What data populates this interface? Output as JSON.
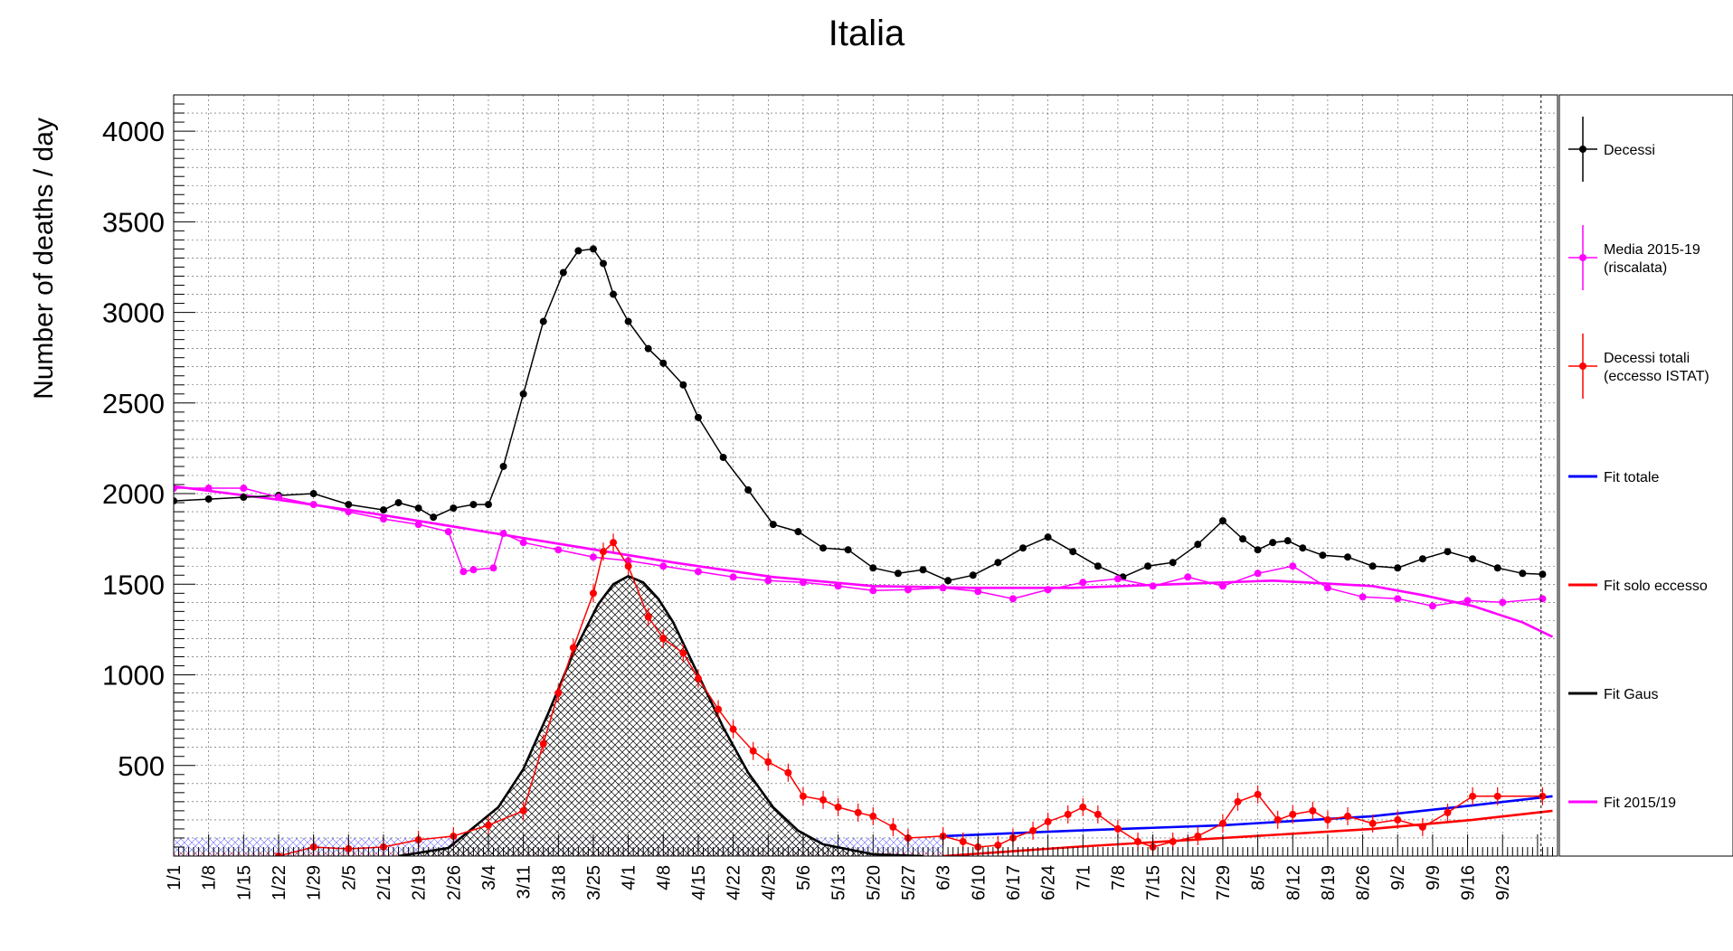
{
  "chart_data": {
    "type": "line",
    "title": "Italia",
    "xlabel": "",
    "ylabel": "Number of deaths / day",
    "xlim": [
      0,
      277
    ],
    "ylim": [
      0,
      4200
    ],
    "yticks": [
      500,
      1000,
      1500,
      2000,
      2500,
      3000,
      3500,
      4000
    ],
    "grid": true,
    "legend_position": "right",
    "x_tick_labels": [
      "1/1",
      "1/8",
      "1/15",
      "1/22",
      "1/29",
      "2/5",
      "2/12",
      "2/19",
      "2/26",
      "3/4",
      "3/11",
      "3/18",
      "3/25",
      "4/1",
      "4/8",
      "4/15",
      "4/22",
      "4/29",
      "5/6",
      "5/13",
      "5/20",
      "5/27",
      "6/3",
      "6/10",
      "6/17",
      "6/24",
      "7/1",
      "7/8",
      "7/15",
      "7/22",
      "7/29",
      "8/5",
      "8/12",
      "8/19",
      "8/26",
      "9/2",
      "9/9",
      "9/16",
      "9/23"
    ],
    "x_tick_days": [
      0,
      7,
      14,
      21,
      28,
      35,
      42,
      49,
      56,
      63,
      70,
      77,
      84,
      91,
      98,
      105,
      112,
      119,
      126,
      133,
      140,
      147,
      154,
      161,
      168,
      175,
      182,
      189,
      196,
      203,
      210,
      217,
      224,
      231,
      238,
      245,
      252,
      259,
      266
    ],
    "series": [
      {
        "name": "Decessi",
        "color": "#000000",
        "x": [
          0,
          7,
          14,
          21,
          28,
          35,
          42,
          45,
          49,
          52,
          56,
          60,
          63,
          66,
          70,
          74,
          78,
          81,
          84,
          86,
          88,
          91,
          95,
          98,
          102,
          105,
          110,
          115,
          120,
          125,
          130,
          135,
          140,
          145,
          150,
          155,
          160,
          165,
          170,
          175,
          180,
          185,
          190,
          195,
          200,
          205,
          210,
          214,
          217,
          220,
          223,
          226,
          230,
          235,
          240,
          245,
          250,
          255,
          260,
          265,
          270,
          274
        ],
        "values": [
          1960,
          1970,
          1980,
          1990,
          2000,
          1940,
          1910,
          1950,
          1920,
          1870,
          1920,
          1940,
          1940,
          2150,
          2550,
          2950,
          3220,
          3340,
          3350,
          3270,
          3100,
          2950,
          2800,
          2720,
          2600,
          2420,
          2200,
          2020,
          1830,
          1790,
          1700,
          1690,
          1590,
          1560,
          1580,
          1520,
          1550,
          1620,
          1700,
          1760,
          1680,
          1600,
          1540,
          1600,
          1620,
          1720,
          1850,
          1750,
          1690,
          1730,
          1740,
          1700,
          1660,
          1650,
          1600,
          1590,
          1640,
          1680,
          1640,
          1590,
          1560,
          1555
        ]
      },
      {
        "name": "Media 2015-19\n(riscalata)",
        "color": "#ff00ff",
        "x": [
          0,
          7,
          14,
          21,
          28,
          35,
          42,
          49,
          55,
          58,
          60,
          64,
          66,
          70,
          77,
          84,
          91,
          98,
          105,
          112,
          119,
          126,
          133,
          140,
          147,
          154,
          161,
          168,
          175,
          182,
          189,
          196,
          203,
          210,
          217,
          224,
          231,
          238,
          245,
          252,
          259,
          266,
          274
        ],
        "values": [
          2030,
          2030,
          2030,
          1980,
          1940,
          1900,
          1860,
          1830,
          1790,
          1570,
          1580,
          1590,
          1780,
          1730,
          1690,
          1650,
          1630,
          1600,
          1570,
          1540,
          1520,
          1510,
          1490,
          1465,
          1470,
          1480,
          1460,
          1420,
          1470,
          1510,
          1530,
          1490,
          1540,
          1490,
          1560,
          1600,
          1480,
          1430,
          1420,
          1380,
          1410,
          1400,
          1420
        ]
      },
      {
        "name": "Decessi totali\n(eccesso ISTAT)",
        "color": "#ff0000",
        "x": [
          21,
          28,
          35,
          42,
          49,
          56,
          63,
          70,
          74,
          77,
          80,
          84,
          86,
          88,
          91,
          95,
          98,
          102,
          105,
          109,
          112,
          116,
          119,
          123,
          126,
          130,
          133,
          137,
          140,
          144,
          147,
          154,
          158,
          161,
          165,
          168,
          172,
          175,
          179,
          182,
          185,
          189,
          193,
          196,
          200,
          205,
          210,
          213,
          217,
          221,
          224,
          228,
          231,
          235,
          240,
          245,
          250,
          255,
          260,
          265,
          274
        ],
        "values": [
          0,
          50,
          40,
          50,
          90,
          110,
          170,
          250,
          620,
          900,
          1150,
          1450,
          1680,
          1730,
          1600,
          1320,
          1200,
          1120,
          980,
          810,
          700,
          580,
          520,
          460,
          330,
          310,
          270,
          240,
          220,
          160,
          100,
          110,
          80,
          50,
          60,
          100,
          140,
          190,
          230,
          270,
          230,
          150,
          80,
          50,
          80,
          110,
          180,
          300,
          340,
          200,
          230,
          250,
          200,
          220,
          180,
          200,
          160,
          240,
          330,
          330,
          330
        ]
      },
      {
        "name": "Fit totale",
        "color": "#0000ff",
        "x": [
          154,
          180,
          210,
          240,
          260,
          276
        ],
        "values": [
          110,
          140,
          170,
          220,
          280,
          330
        ]
      },
      {
        "name": "Fit solo eccesso",
        "color": "#ff0000",
        "x": [
          154,
          180,
          210,
          240,
          260,
          276
        ],
        "values": [
          0,
          50,
          100,
          150,
          200,
          250
        ]
      },
      {
        "name": "Fit Gaus",
        "color": "#000000",
        "x": [
          45,
          55,
          65,
          70,
          75,
          80,
          85,
          88,
          91,
          94,
          97,
          100,
          105,
          110,
          115,
          120,
          125,
          130,
          140,
          150
        ],
        "values": [
          0,
          45,
          270,
          480,
          790,
          1120,
          1390,
          1500,
          1545,
          1510,
          1420,
          1290,
          1000,
          710,
          460,
          270,
          140,
          65,
          10,
          0
        ]
      },
      {
        "name": "Fit 2015/19",
        "color": "#ff00ff",
        "x": [
          0,
          20,
          40,
          60,
          80,
          100,
          120,
          140,
          160,
          180,
          200,
          220,
          240,
          250,
          260,
          270,
          276
        ],
        "values": [
          2040,
          1970,
          1890,
          1800,
          1710,
          1620,
          1540,
          1490,
          1480,
          1480,
          1500,
          1520,
          1490,
          1440,
          1380,
          1290,
          1210
        ]
      }
    ],
    "legend": [
      {
        "label": "Decessi",
        "color": "#000000",
        "marker": "point"
      },
      {
        "label": "Media 2015-19\n(riscalata)",
        "color": "#ff00ff",
        "marker": "point"
      },
      {
        "label": "Decessi totali\n(eccesso ISTAT)",
        "color": "#ff0000",
        "marker": "point"
      },
      {
        "label": "Fit totale",
        "color": "#0000ff",
        "marker": "line"
      },
      {
        "label": "Fit solo eccesso",
        "color": "#ff0000",
        "marker": "line"
      },
      {
        "label": "Fit Gaus",
        "color": "#000000",
        "marker": "line"
      },
      {
        "label": "Fit 2015/19",
        "color": "#ff00ff",
        "marker": "line"
      }
    ]
  }
}
